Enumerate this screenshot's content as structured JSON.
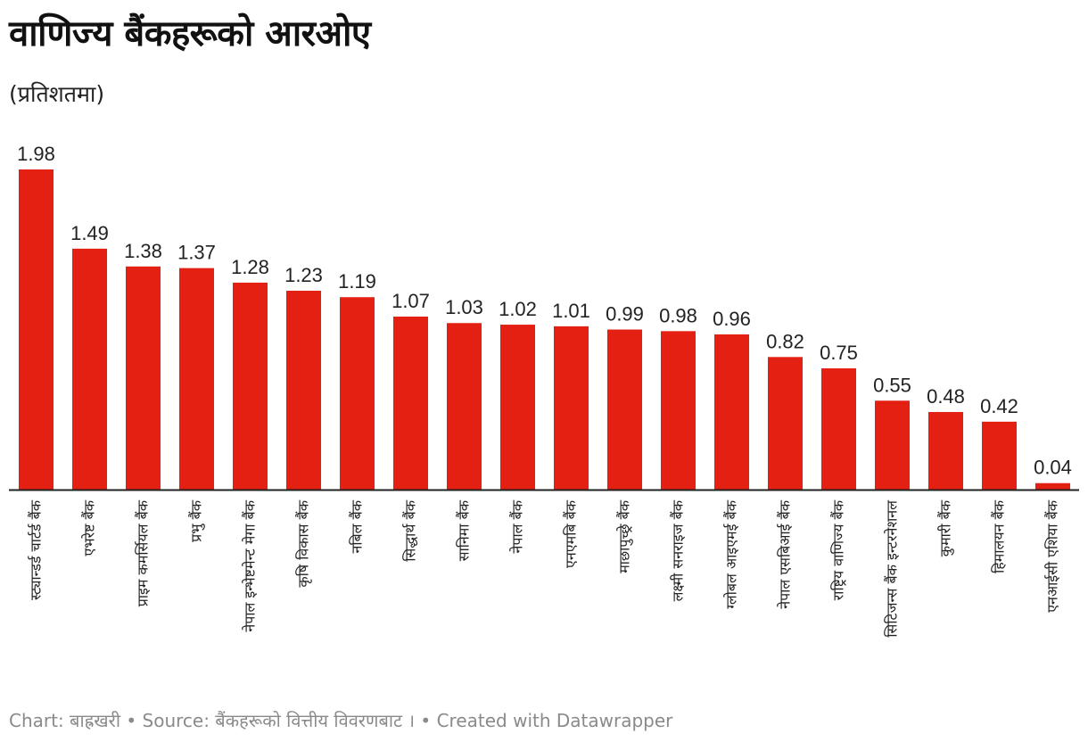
{
  "header": {
    "title": "वाणिज्य बैंकहरूको आरओए",
    "subtitle": "(प्रतिशतमा)"
  },
  "footer": {
    "text": "Chart: बाह्रखरी • Source: बैंकहरूको वित्तीय विवरणबाट । • Created with Datawrapper"
  },
  "colors": {
    "bar": "#e32012",
    "axis": "#222222"
  },
  "chart_data": {
    "type": "bar",
    "title": "वाणिज्य बैंकहरूको आरओए",
    "subtitle": "(प्रतिशतमा)",
    "categories": [
      "स्ट्यान्डर्ड चार्टर्ड बैंक",
      "एभरेष्ट बैंक",
      "प्राइम कमर्सियल बैंक",
      "प्रभु बैंक",
      "नेपाल इन्भेष्टमेन्ट मेगा बैंक",
      "कृषि विकास बैंक",
      "नबिल बैंक",
      "सिद्धार्थ बैंक",
      "सानिमा बैंक",
      "नेपाल बैंक",
      "एनएमबि बैंक",
      "माछापुच्छ्रे बैंक",
      "लक्ष्मी सनराइज बैंक",
      "ग्लोबल आइएमई बैंक",
      "नेपाल एसबिआई बैंक",
      "राष्ट्रिय वाणिज्य बैंक",
      "सिटिजन्स बैंक इन्टरनेशनल",
      "कुमारी बैंक",
      "हिमालयन बैंक",
      "एनआईसी एशिया बैंक"
    ],
    "values": [
      1.98,
      1.49,
      1.38,
      1.37,
      1.28,
      1.23,
      1.19,
      1.07,
      1.03,
      1.02,
      1.01,
      0.99,
      0.98,
      0.96,
      0.82,
      0.75,
      0.55,
      0.48,
      0.42,
      0.04
    ],
    "value_labels": [
      "1.98",
      "1.49",
      "1.38",
      "1.37",
      "1.28",
      "1.23",
      "1.19",
      "1.07",
      "1.03",
      "1.02",
      "1.01",
      "0.99",
      "0.98",
      "0.96",
      "0.82",
      "0.75",
      "0.55",
      "0.48",
      "0.42",
      "0.04"
    ],
    "xlabel": "",
    "ylabel": "",
    "ylim": [
      0,
      1.98
    ],
    "grid": false,
    "legend": "none"
  }
}
